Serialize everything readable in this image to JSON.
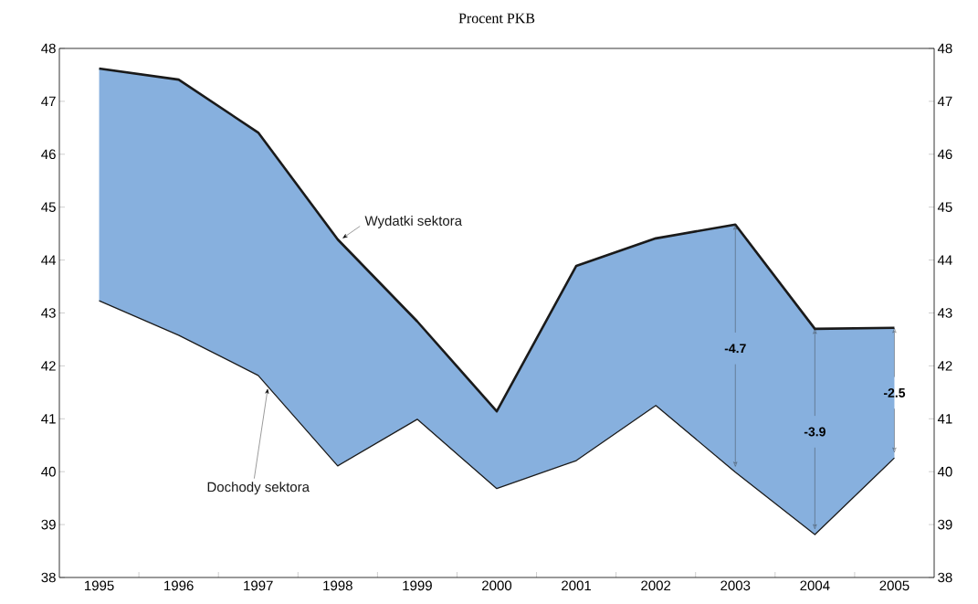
{
  "chart_data": {
    "type": "line",
    "subtitle": "Procent PKB",
    "categories": [
      "1995",
      "1996",
      "1997",
      "1998",
      "1999",
      "2000",
      "2001",
      "2002",
      "2003",
      "2004",
      "2005"
    ],
    "series": [
      {
        "name": "Wydatki sektora",
        "color": "#1a1a1a",
        "values": [
          47.62,
          47.41,
          46.41,
          44.39,
          42.84,
          41.14,
          43.89,
          44.41,
          44.67,
          42.7,
          42.72
        ],
        "lower": [
          43.23,
          42.58,
          41.82,
          40.11,
          40.99,
          39.68,
          40.21,
          41.25,
          39.99,
          38.81,
          40.26
        ],
        "upper": [
          47.62,
          47.41,
          46.41,
          44.39,
          42.84,
          41.14,
          43.89,
          44.41,
          44.67,
          42.7,
          42.72
        ]
      },
      {
        "name": "Dochody sektora",
        "color": "#1a1a1a",
        "values": [
          43.23,
          42.58,
          41.82,
          40.11,
          40.99,
          39.68,
          40.21,
          41.25,
          39.99,
          38.81,
          40.26
        ]
      }
    ],
    "ylim": [
      38,
      48
    ],
    "yticks": [
      38,
      39,
      40,
      41,
      42,
      43,
      44,
      45,
      46,
      47,
      48
    ],
    "y2lim": [
      38,
      48
    ],
    "y2ticks": [
      38,
      39,
      40,
      41,
      42,
      43,
      44,
      45,
      46,
      47,
      48
    ],
    "annotations": [
      {
        "text": "-4.7",
        "x": "2003",
        "y": 44.67
      },
      {
        "text": "-3.9",
        "x": "2004",
        "y": 42.7
      },
      {
        "text": "-2.5",
        "x": "2005",
        "y": 42.72
      }
    ],
    "grid": false,
    "marker": "none",
    "line_style": "solid"
  }
}
